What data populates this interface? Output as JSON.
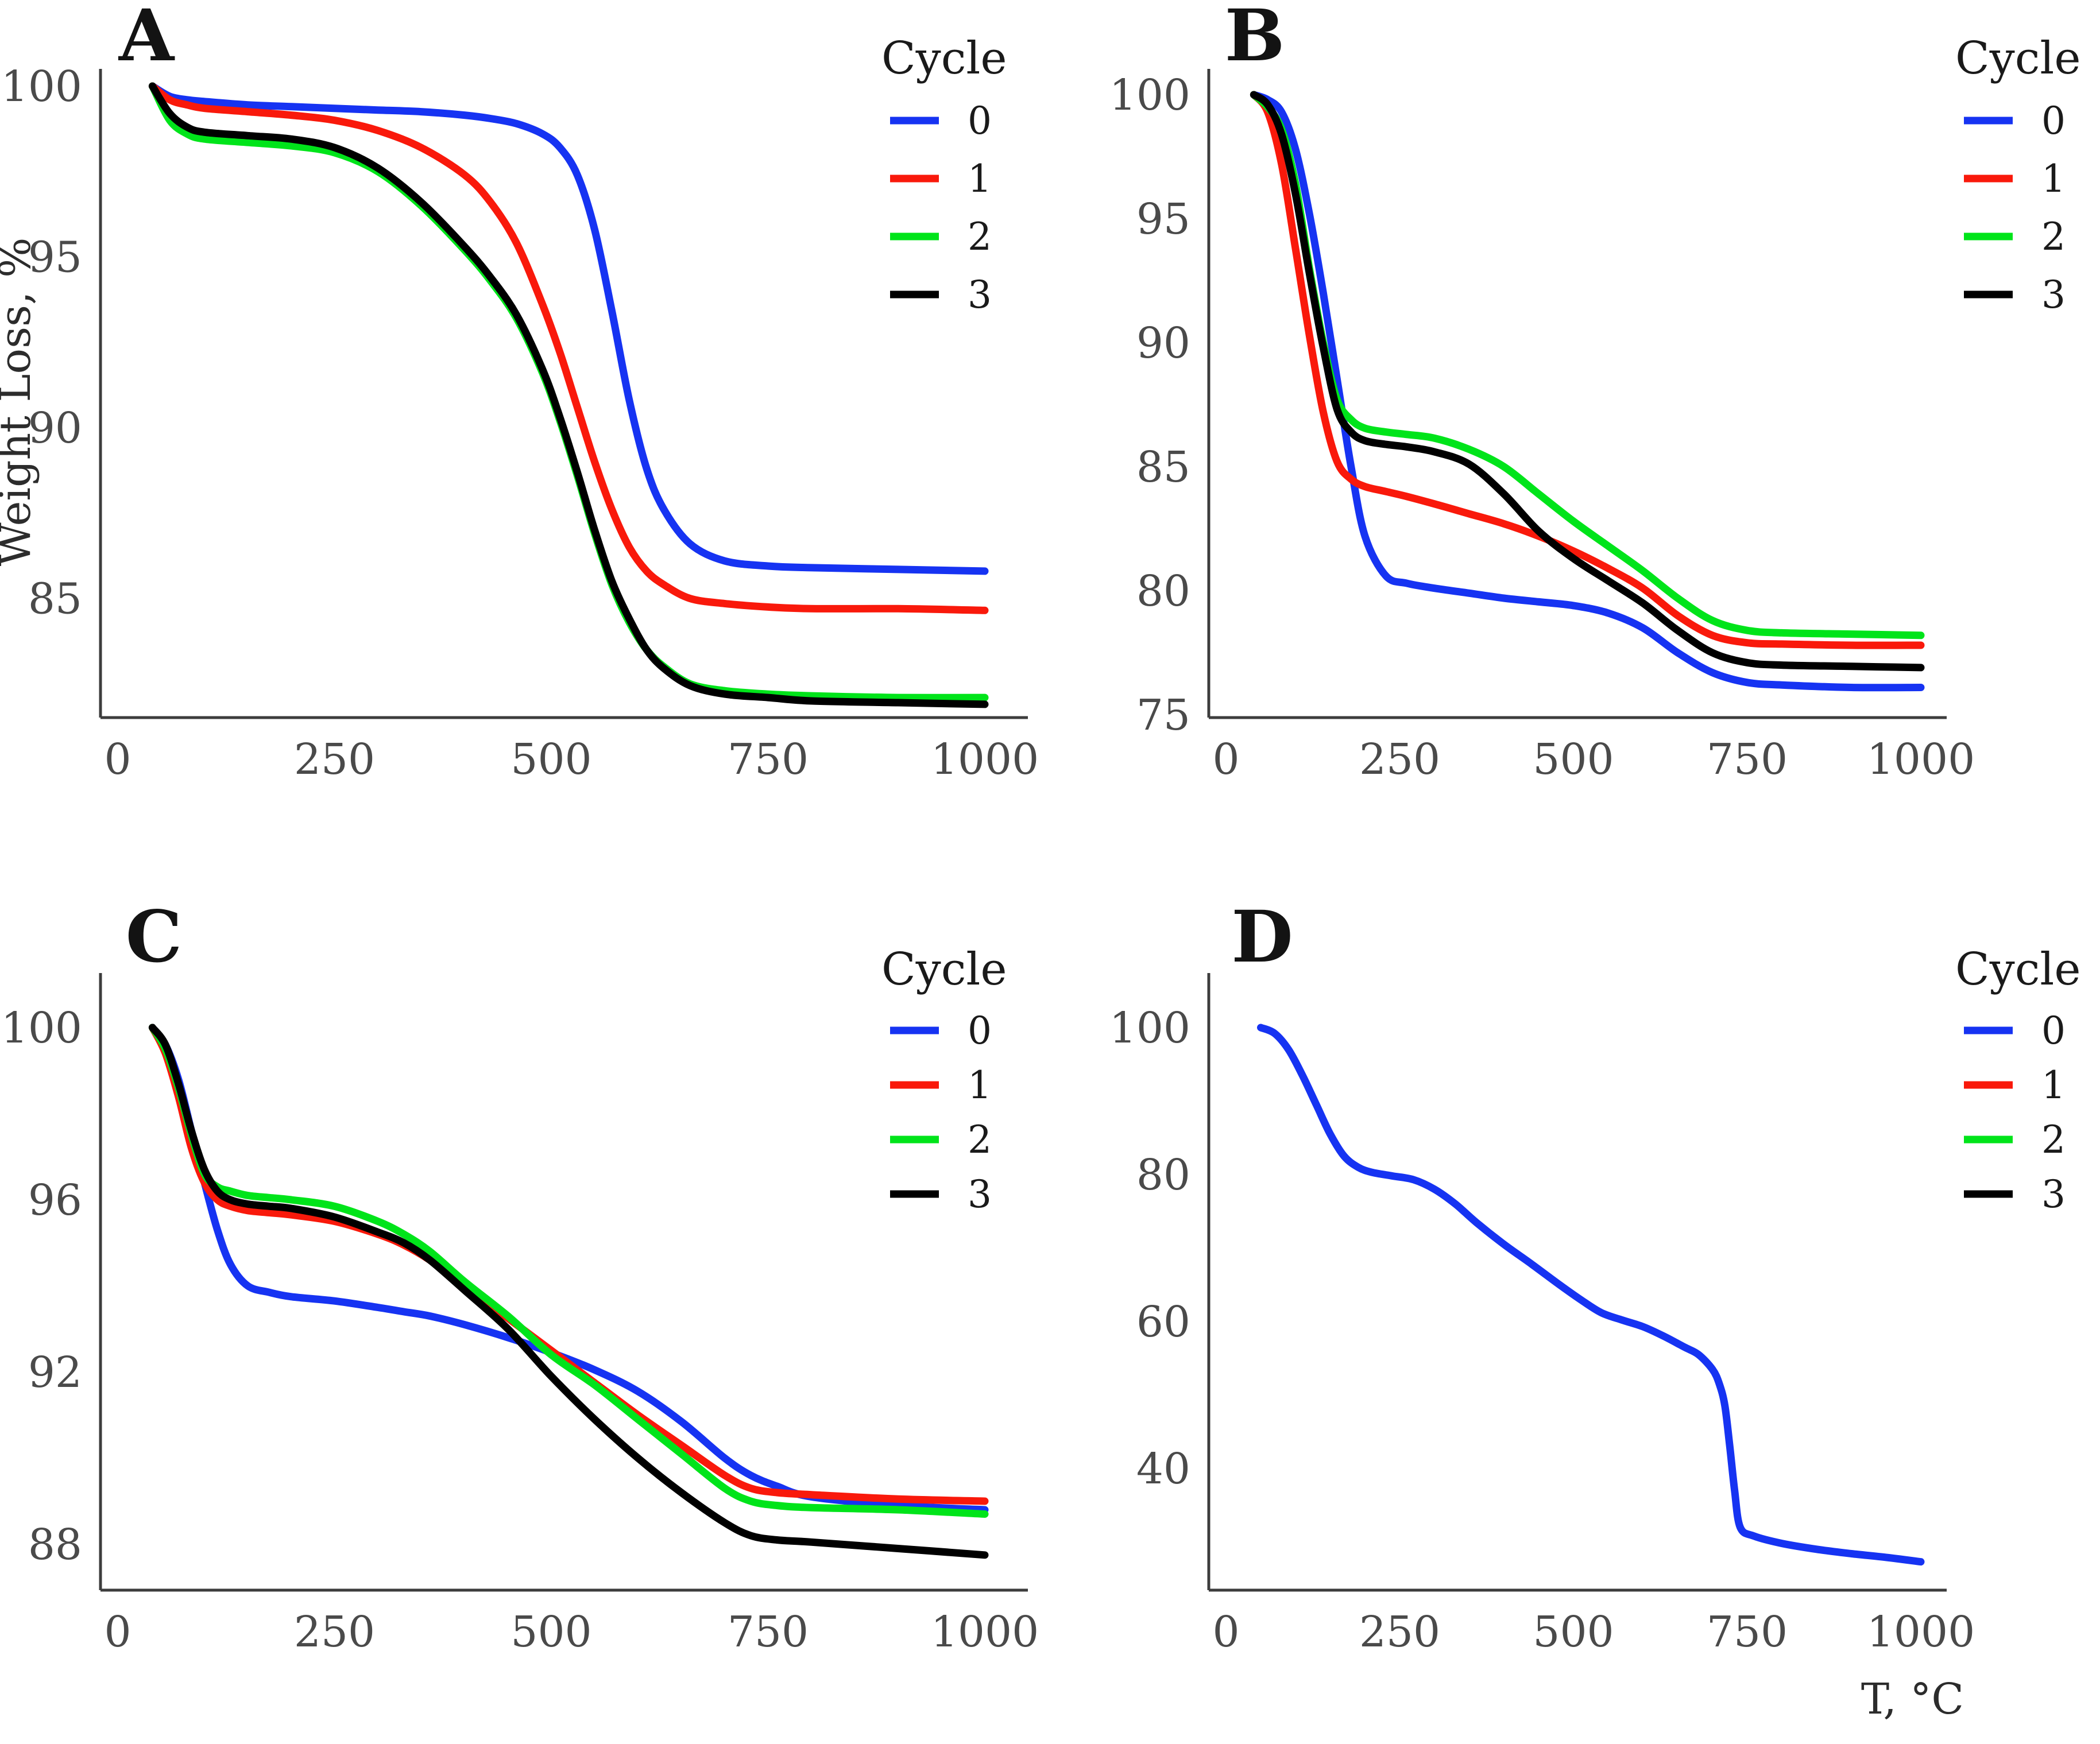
{
  "figure": {
    "y_axis_label": "Weight Loss, %",
    "x_axis_label": "T, °C",
    "background_color": "#ffffff",
    "axis_color": "#3d3d3d",
    "tick_text_color": "#4a4a4a",
    "legend": {
      "title": "Cycle",
      "position": "right",
      "entries": [
        {
          "label": "0",
          "color": "#1633F2"
        },
        {
          "label": "1",
          "color": "#F9190B"
        },
        {
          "label": "2",
          "color": "#00E41A"
        },
        {
          "label": "3",
          "color": "#000000"
        }
      ]
    }
  },
  "chart_data": [
    {
      "id": "A",
      "type": "line",
      "title": "A",
      "ylabel": "Weight Loss, %",
      "xlabel": "",
      "xlim": [
        0,
        1000
      ],
      "ylim": [
        81.5,
        100.5
      ],
      "x_ticks": [
        0,
        250,
        500,
        750,
        1000
      ],
      "y_ticks": [
        100,
        95,
        90,
        85
      ],
      "grid": false,
      "series": [
        {
          "name": "0",
          "color": "#1633F2",
          "x": [
            40,
            60,
            80,
            100,
            150,
            200,
            250,
            300,
            350,
            400,
            430,
            460,
            490,
            510,
            530,
            550,
            570,
            590,
            610,
            630,
            660,
            700,
            750,
            800,
            900,
            1000
          ],
          "y": [
            100,
            99.7,
            99.6,
            99.55,
            99.45,
            99.4,
            99.35,
            99.3,
            99.25,
            99.15,
            99.05,
            98.9,
            98.6,
            98.2,
            97.4,
            95.8,
            93.4,
            90.8,
            88.8,
            87.6,
            86.6,
            86.1,
            85.95,
            85.9,
            85.85,
            85.8
          ]
        },
        {
          "name": "1",
          "color": "#F9190B",
          "x": [
            40,
            60,
            80,
            100,
            150,
            200,
            250,
            300,
            350,
            400,
            430,
            460,
            490,
            510,
            530,
            550,
            570,
            590,
            610,
            630,
            660,
            700,
            750,
            800,
            900,
            1000
          ],
          "y": [
            100,
            99.6,
            99.45,
            99.35,
            99.25,
            99.15,
            99.0,
            98.7,
            98.2,
            97.4,
            96.6,
            95.4,
            93.6,
            92.2,
            90.6,
            89.0,
            87.6,
            86.5,
            85.8,
            85.4,
            85.0,
            84.85,
            84.75,
            84.7,
            84.7,
            84.65
          ]
        },
        {
          "name": "2",
          "color": "#00E41A",
          "x": [
            40,
            60,
            80,
            100,
            150,
            200,
            250,
            300,
            350,
            400,
            430,
            460,
            490,
            510,
            530,
            550,
            570,
            590,
            610,
            630,
            660,
            700,
            750,
            800,
            900,
            1000
          ],
          "y": [
            100,
            99.0,
            98.6,
            98.45,
            98.35,
            98.25,
            98.05,
            97.5,
            96.5,
            95.2,
            94.3,
            93.2,
            91.6,
            90.2,
            88.6,
            86.9,
            85.4,
            84.3,
            83.5,
            83.0,
            82.5,
            82.3,
            82.2,
            82.15,
            82.1,
            82.1
          ]
        },
        {
          "name": "3",
          "color": "#000000",
          "x": [
            40,
            60,
            80,
            100,
            150,
            200,
            250,
            300,
            350,
            400,
            430,
            460,
            490,
            510,
            530,
            550,
            570,
            590,
            610,
            630,
            660,
            700,
            750,
            800,
            900,
            1000
          ],
          "y": [
            100,
            99.2,
            98.8,
            98.65,
            98.55,
            98.45,
            98.2,
            97.6,
            96.6,
            95.3,
            94.4,
            93.3,
            91.7,
            90.3,
            88.7,
            87.0,
            85.5,
            84.4,
            83.5,
            82.95,
            82.45,
            82.2,
            82.1,
            82.0,
            81.95,
            81.9
          ]
        }
      ]
    },
    {
      "id": "B",
      "type": "line",
      "title": "B",
      "ylabel": "",
      "xlabel": "",
      "xlim": [
        0,
        1000
      ],
      "ylim": [
        74.8,
        100.5
      ],
      "x_ticks": [
        0,
        250,
        500,
        750,
        1000
      ],
      "y_ticks": [
        100,
        95,
        90,
        85,
        80,
        75
      ],
      "grid": false,
      "series": [
        {
          "name": "0",
          "color": "#1633F2",
          "x": [
            40,
            60,
            80,
            100,
            120,
            140,
            160,
            180,
            200,
            230,
            260,
            300,
            350,
            400,
            450,
            500,
            550,
            600,
            650,
            700,
            750,
            800,
            900,
            1000
          ],
          "y": [
            100,
            99.8,
            99.3,
            97.8,
            95.2,
            92.0,
            88.5,
            85.0,
            82.2,
            80.6,
            80.3,
            80.1,
            79.9,
            79.7,
            79.55,
            79.4,
            79.1,
            78.5,
            77.5,
            76.7,
            76.3,
            76.2,
            76.1,
            76.1
          ]
        },
        {
          "name": "1",
          "color": "#F9190B",
          "x": [
            40,
            60,
            80,
            100,
            120,
            140,
            160,
            180,
            200,
            230,
            260,
            300,
            350,
            400,
            450,
            500,
            550,
            600,
            650,
            700,
            750,
            800,
            900,
            1000
          ],
          "y": [
            100,
            99.3,
            97.2,
            93.8,
            90.3,
            87.2,
            85.2,
            84.5,
            84.2,
            84.0,
            83.8,
            83.5,
            83.1,
            82.7,
            82.2,
            81.6,
            80.9,
            80.1,
            79.0,
            78.2,
            77.9,
            77.85,
            77.8,
            77.8
          ]
        },
        {
          "name": "2",
          "color": "#00E41A",
          "x": [
            40,
            60,
            80,
            100,
            120,
            140,
            160,
            180,
            200,
            230,
            260,
            300,
            350,
            400,
            450,
            500,
            550,
            600,
            650,
            700,
            750,
            800,
            900,
            1000
          ],
          "y": [
            100,
            99.5,
            98.6,
            96.4,
            93.0,
            90.0,
            87.7,
            86.9,
            86.55,
            86.4,
            86.3,
            86.15,
            85.7,
            85.0,
            83.9,
            82.8,
            81.8,
            80.8,
            79.7,
            78.8,
            78.4,
            78.3,
            78.25,
            78.2
          ]
        },
        {
          "name": "3",
          "color": "#000000",
          "x": [
            40,
            60,
            80,
            100,
            120,
            140,
            160,
            180,
            200,
            230,
            260,
            300,
            350,
            400,
            450,
            500,
            550,
            600,
            650,
            700,
            750,
            800,
            900,
            1000
          ],
          "y": [
            100,
            99.6,
            98.4,
            96.0,
            92.8,
            89.8,
            87.3,
            86.4,
            86.05,
            85.9,
            85.8,
            85.6,
            85.1,
            83.9,
            82.4,
            81.3,
            80.4,
            79.5,
            78.4,
            77.5,
            77.1,
            77.0,
            76.95,
            76.9
          ]
        }
      ]
    },
    {
      "id": "C",
      "type": "line",
      "title": "C",
      "ylabel": "",
      "xlabel": "",
      "xlim": [
        0,
        1000
      ],
      "ylim": [
        87.4,
        100.5
      ],
      "x_ticks": [
        0,
        250,
        500,
        750,
        1000
      ],
      "y_ticks": [
        100,
        96,
        92,
        88
      ],
      "grid": false,
      "series": [
        {
          "name": "0",
          "color": "#1633F2",
          "x": [
            40,
            55,
            70,
            85,
            100,
            115,
            130,
            150,
            175,
            200,
            250,
            300,
            330,
            360,
            400,
            450,
            500,
            550,
            600,
            650,
            700,
            730,
            760,
            800,
            900,
            1000
          ],
          "y": [
            100,
            99.6,
            98.8,
            97.6,
            96.4,
            95.3,
            94.5,
            94.0,
            93.85,
            93.75,
            93.65,
            93.5,
            93.4,
            93.3,
            93.1,
            92.8,
            92.45,
            92.05,
            91.55,
            90.85,
            90.0,
            89.6,
            89.35,
            89.1,
            88.9,
            88.8
          ]
        },
        {
          "name": "1",
          "color": "#F9190B",
          "x": [
            40,
            55,
            70,
            85,
            100,
            115,
            130,
            150,
            175,
            200,
            250,
            300,
            330,
            360,
            400,
            450,
            500,
            550,
            600,
            650,
            700,
            730,
            760,
            800,
            900,
            1000
          ],
          "y": [
            100,
            99.4,
            98.4,
            97.2,
            96.4,
            96.0,
            95.85,
            95.75,
            95.7,
            95.65,
            95.5,
            95.2,
            94.95,
            94.6,
            94.0,
            93.25,
            92.5,
            91.75,
            91.0,
            90.3,
            89.6,
            89.3,
            89.2,
            89.15,
            89.05,
            89.0
          ]
        },
        {
          "name": "2",
          "color": "#00E41A",
          "x": [
            40,
            55,
            70,
            85,
            100,
            115,
            130,
            150,
            175,
            200,
            250,
            300,
            330,
            360,
            400,
            450,
            500,
            550,
            600,
            650,
            700,
            730,
            760,
            800,
            900,
            1000
          ],
          "y": [
            100,
            99.5,
            98.6,
            97.5,
            96.6,
            96.3,
            96.2,
            96.1,
            96.05,
            96.0,
            95.85,
            95.5,
            95.2,
            94.8,
            94.1,
            93.3,
            92.4,
            91.7,
            90.9,
            90.1,
            89.3,
            89.0,
            88.9,
            88.85,
            88.8,
            88.7
          ]
        },
        {
          "name": "3",
          "color": "#000000",
          "x": [
            40,
            55,
            70,
            85,
            100,
            115,
            130,
            150,
            175,
            200,
            250,
            300,
            330,
            360,
            400,
            450,
            500,
            550,
            600,
            650,
            700,
            730,
            760,
            800,
            900,
            1000
          ],
          "y": [
            100,
            99.6,
            98.7,
            97.6,
            96.7,
            96.2,
            96.0,
            95.9,
            95.85,
            95.8,
            95.6,
            95.25,
            95.0,
            94.6,
            93.9,
            93.0,
            91.9,
            90.9,
            90.0,
            89.2,
            88.5,
            88.2,
            88.1,
            88.05,
            87.9,
            87.75
          ]
        }
      ]
    },
    {
      "id": "D",
      "type": "line",
      "title": "D",
      "ylabel": "",
      "xlabel": "T, °C",
      "xlim": [
        0,
        1000
      ],
      "ylim": [
        25,
        102
      ],
      "x_ticks": [
        0,
        250,
        500,
        750,
        1000
      ],
      "y_ticks": [
        100,
        80,
        60,
        40
      ],
      "grid": false,
      "series": [
        {
          "name": "0",
          "color": "#1633F2",
          "x": [
            50,
            70,
            90,
            110,
            130,
            150,
            170,
            190,
            210,
            240,
            270,
            300,
            330,
            360,
            400,
            440,
            480,
            510,
            540,
            570,
            600,
            630,
            660,
            680,
            700,
            710,
            718,
            725,
            732,
            740,
            760,
            800,
            850,
            900,
            950,
            1000
          ],
          "y": [
            100,
            99.2,
            97.0,
            93.5,
            89.5,
            85.5,
            82.5,
            81.0,
            80.3,
            79.8,
            79.3,
            78.0,
            76.0,
            73.5,
            70.5,
            67.8,
            65.0,
            63.0,
            61.2,
            60.2,
            59.3,
            58.0,
            56.5,
            55.5,
            53.5,
            51.5,
            48.5,
            43.0,
            37.0,
            32.0,
            30.8,
            29.8,
            29.0,
            28.4,
            27.9,
            27.3
          ]
        }
      ]
    }
  ]
}
